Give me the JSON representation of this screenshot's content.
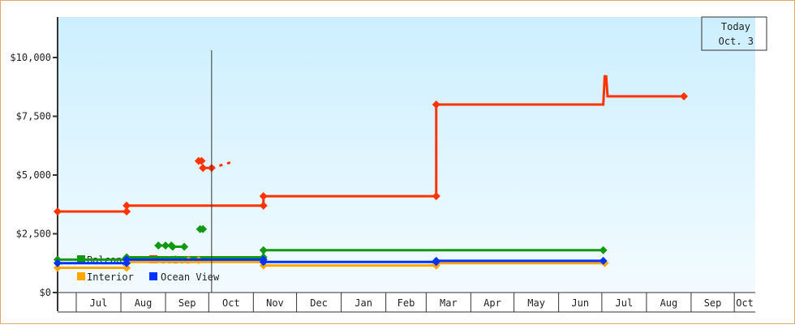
{
  "chart_data": {
    "type": "line",
    "title": "",
    "xlabel": "",
    "ylabel": "",
    "ylim": [
      0,
      11600
    ],
    "y_ticks": [
      {
        "value": 0,
        "label": "$0"
      },
      {
        "value": 2500,
        "label": "$2,500"
      },
      {
        "value": 5000,
        "label": "$5,000"
      },
      {
        "value": 7500,
        "label": "$7,500"
      },
      {
        "value": 10000,
        "label": "$10,000"
      }
    ],
    "x_months": [
      "Jul",
      "Aug",
      "Sep",
      "Oct",
      "Nov",
      "Dec",
      "Jan",
      "Feb",
      "Mar",
      "Apr",
      "May",
      "Jun",
      "Jul",
      "Aug",
      "Sep",
      "Oct"
    ],
    "grid": false,
    "background_gradient": [
      "#ccefff",
      "#f3fbff"
    ],
    "today_marker": {
      "line1": "Today",
      "line2": "Oct. 3",
      "date": "Oct 3"
    },
    "legend_placement": "bottom-left",
    "series": [
      {
        "name": "Balcony",
        "color": "#119911",
        "points": [
          [
            "Jun 18",
            1400
          ],
          [
            "Aug 5",
            1400
          ],
          [
            "Aug 5",
            1500
          ],
          [
            "Nov 8",
            1500
          ],
          [
            "Nov 8",
            1800
          ],
          [
            "Mar 8",
            1800
          ],
          [
            "Jul 2",
            1800
          ]
        ],
        "extra_points": [
          [
            "Aug 27",
            2000
          ],
          [
            "Sep 1",
            2000
          ],
          [
            "Sep 5",
            2000
          ],
          [
            "Sep 6",
            1950
          ],
          [
            "Sep 14",
            1950
          ],
          [
            "Sep 25",
            2700
          ],
          [
            "Sep 27",
            2700
          ]
        ]
      },
      {
        "name": "Suite",
        "color": "#ff3300",
        "points": [
          [
            "Jun 18",
            3450
          ],
          [
            "Aug 5",
            3450
          ],
          [
            "Aug 5",
            3700
          ],
          [
            "Nov 8",
            3700
          ],
          [
            "Nov 8",
            4100
          ],
          [
            "Mar 8",
            4100
          ],
          [
            "Mar 8",
            8000
          ],
          [
            "Jul 2",
            8000
          ],
          [
            "Jul 3",
            9200
          ],
          [
            "Jul 4",
            9200
          ],
          [
            "Jul 5",
            8350
          ],
          [
            "Aug 27",
            8350
          ]
        ],
        "extra_points": [
          [
            "Sep 24",
            5600
          ],
          [
            "Sep 26",
            5600
          ],
          [
            "Sep 27",
            5300
          ],
          [
            "Oct 3",
            5300
          ]
        ],
        "forecast": [
          [
            "Oct 3",
            5300
          ],
          [
            "Oct 17",
            5550
          ]
        ]
      },
      {
        "name": "Interior",
        "color": "#ffa500",
        "points": [
          [
            "Jun 18",
            1050
          ],
          [
            "Aug 5",
            1050
          ],
          [
            "Aug 5",
            1300
          ],
          [
            "Nov 8",
            1300
          ],
          [
            "Nov 8",
            1150
          ],
          [
            "Mar 8",
            1150
          ],
          [
            "Mar 8",
            1250
          ],
          [
            "Jul 3",
            1250
          ]
        ],
        "extra_points": [
          [
            "Sep 17",
            1380
          ],
          [
            "Sep 24",
            1380
          ]
        ]
      },
      {
        "name": "Ocean View",
        "color": "#0033ff",
        "points": [
          [
            "Jun 18",
            1250
          ],
          [
            "Aug 5",
            1250
          ],
          [
            "Aug 5",
            1400
          ],
          [
            "Nov 8",
            1400
          ],
          [
            "Nov 8",
            1300
          ],
          [
            "Mar 8",
            1300
          ],
          [
            "Mar 8",
            1350
          ],
          [
            "Jul 2",
            1350
          ]
        ]
      }
    ]
  }
}
